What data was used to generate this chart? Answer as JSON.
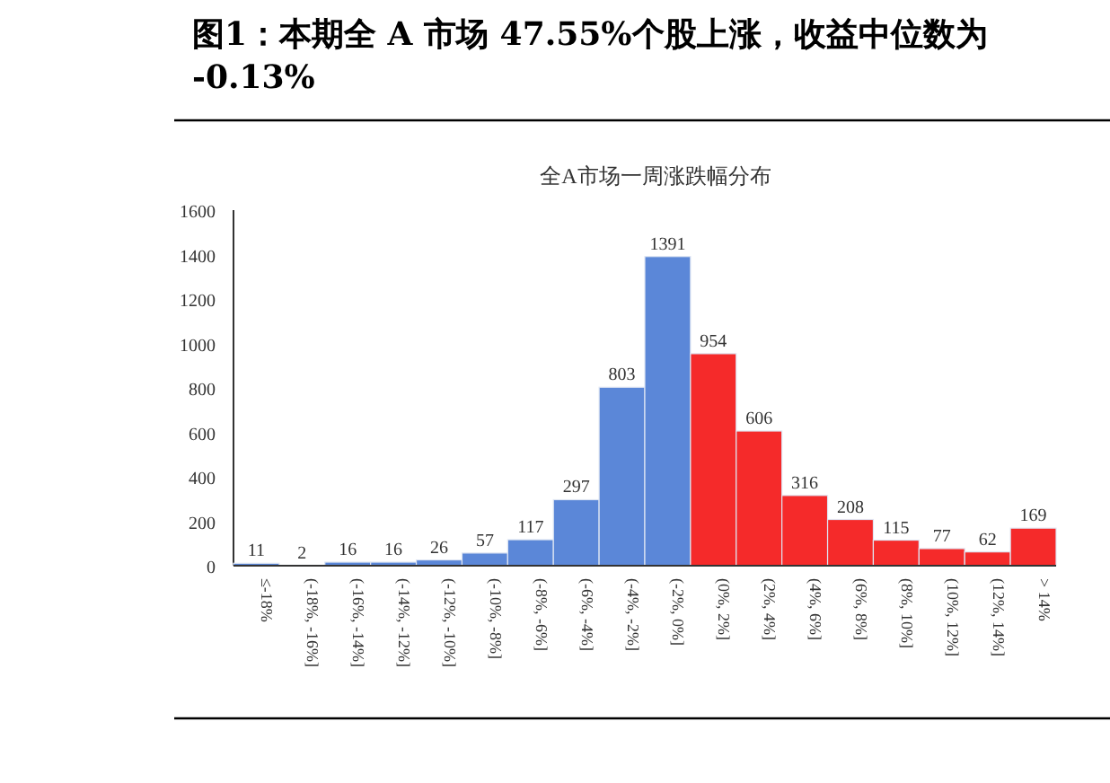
{
  "chart_data": {
    "type": "bar",
    "title": "图1：本期全 A 市场 47.55%个股上涨，收益中位数为 -0.13%",
    "subtitle": "全A市场一周涨跌幅分布",
    "categories": [
      "≤-18%",
      "(-18%, -16%]",
      "(-16%, -14%]",
      "(-14%, -12%]",
      "(-12%, -10%]",
      "(-10%, -8%]",
      "(-8%, -6%]",
      "(-6%, -4%]",
      "(-4%, -2%]",
      "(-2%, 0%]",
      "(0%, 2%]",
      "(2%, 4%]",
      "(4%, 6%]",
      "(6%, 8%]",
      "(8%, 10%]",
      "(10%, 12%]",
      "(12%, 14%]",
      "> 14%"
    ],
    "values": [
      11,
      2,
      16,
      16,
      26,
      57,
      117,
      297,
      803,
      1391,
      954,
      606,
      316,
      208,
      115,
      77,
      62,
      169
    ],
    "colors": [
      "#5b87d8",
      "#5b87d8",
      "#5b87d8",
      "#5b87d8",
      "#5b87d8",
      "#5b87d8",
      "#5b87d8",
      "#5b87d8",
      "#5b87d8",
      "#5b87d8",
      "#f52a2a",
      "#f52a2a",
      "#f52a2a",
      "#f52a2a",
      "#f52a2a",
      "#f52a2a",
      "#f52a2a",
      "#f52a2a"
    ],
    "ylim": [
      0,
      1600
    ],
    "yticks": [
      0,
      200,
      400,
      600,
      800,
      1000,
      1200,
      1400,
      1600
    ],
    "data_labels": true,
    "grid": false
  }
}
